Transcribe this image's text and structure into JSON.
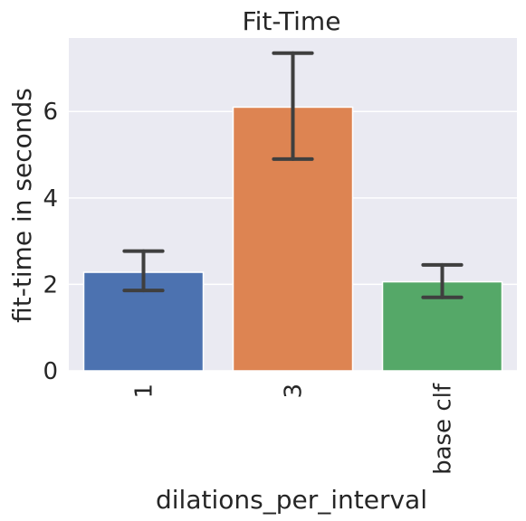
{
  "chart_data": {
    "type": "bar",
    "title": "Fit-Time",
    "xlabel": "dilations_per_interval",
    "ylabel": "fit-time in seconds",
    "categories": [
      "1",
      "3",
      "base clf"
    ],
    "values": [
      2.28,
      6.1,
      2.06
    ],
    "error_low": [
      1.86,
      4.9,
      1.7
    ],
    "error_high": [
      2.77,
      7.35,
      2.45
    ],
    "ylim": [
      0,
      7.7
    ],
    "yticks": [
      "0",
      "2",
      "4",
      "6"
    ],
    "grid": true,
    "colors": [
      "#4c72b0",
      "#dd8452",
      "#55a868"
    ],
    "background": "#eaeaf2",
    "error_color": "#3f3f3f"
  }
}
